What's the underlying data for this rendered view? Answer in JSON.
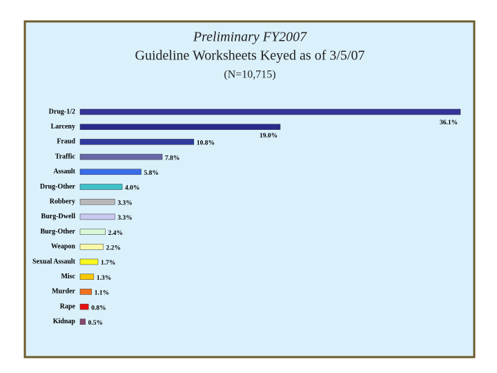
{
  "chart_data": {
    "type": "bar",
    "orientation": "horizontal",
    "title": "Preliminary FY2007",
    "subtitle": "Guideline Worksheets Keyed as of 3/5/07",
    "annotation": "(N=10,715)",
    "categories": [
      "Drug-1/2",
      "Larceny",
      "Fraud",
      "Traffic",
      "Assault",
      "Drug-Other",
      "Robbery",
      "Burg-Dwell",
      "Burg-Other",
      "Weapon",
      "Sexual Assault",
      "Misc",
      "Murder",
      "Rape",
      "Kidnap"
    ],
    "values": [
      36.1,
      19.0,
      10.8,
      7.8,
      5.8,
      4.0,
      3.3,
      3.3,
      2.4,
      2.2,
      1.7,
      1.3,
      1.1,
      0.8,
      0.5
    ],
    "value_labels": [
      "36.1%",
      "19.0%",
      "10.8%",
      "7.8%",
      "5.8%",
      "4.0%",
      "3.3%",
      "3.3%",
      "2.4%",
      "2.2%",
      "1.7%",
      "1.3%",
      "1.1%",
      "0.8%",
      "0.5%"
    ],
    "colors": [
      "#33339a",
      "#2a2a8c",
      "#2e3aa0",
      "#6868a8",
      "#3a6ee8",
      "#40c0c8",
      "#b8b8b8",
      "#c8c8f0",
      "#d8f8d8",
      "#f8f8a8",
      "#f8f820",
      "#f8c800",
      "#f07020",
      "#e81010",
      "#884870"
    ]
  }
}
